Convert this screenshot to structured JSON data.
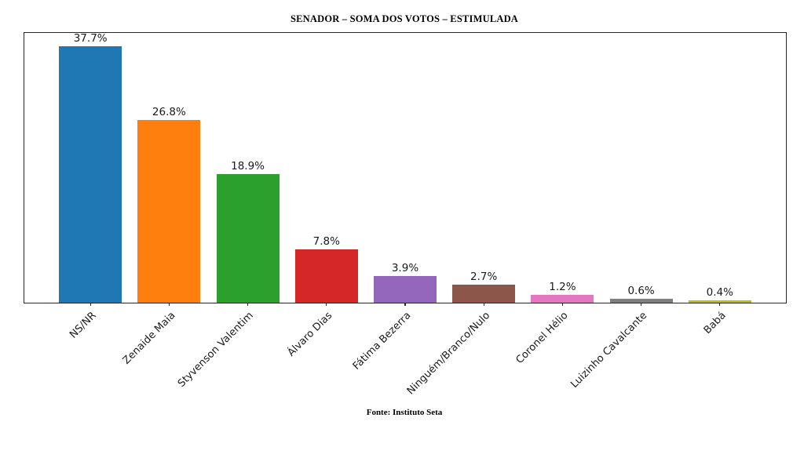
{
  "title": "SENADOR – SOMA DOS VOTOS – ESTIMULADA",
  "source": "Fonte: Instituto Seta",
  "chart_data": {
    "type": "bar",
    "title": "SENADOR – SOMA DOS VOTOS – ESTIMULADA",
    "categories": [
      "NS/NR",
      "Zenaide Maia",
      "Styvenson Valentim",
      "Álvaro Dias",
      "Fátima Bezerra",
      "Ninguém/Branco/Nulo",
      "Coronel Hélio",
      "Luizinho Cavalcante",
      "Babá"
    ],
    "values": [
      37.7,
      26.8,
      18.9,
      7.8,
      3.9,
      2.7,
      1.2,
      0.6,
      0.4
    ],
    "value_labels": [
      "37.7%",
      "26.8%",
      "18.9%",
      "7.8%",
      "3.9%",
      "2.7%",
      "1.2%",
      "0.6%",
      "0.4%"
    ],
    "bar_colors": [
      "#1f77b4",
      "#ff7f0e",
      "#2ca02c",
      "#d62728",
      "#9467bd",
      "#8c564b",
      "#e377c2",
      "#7f7f7f",
      "#bcbd22"
    ],
    "xlabel": "",
    "ylabel": "",
    "ylim": [
      0,
      39.6
    ],
    "grid": false,
    "legend": "none",
    "xtick_rotation": 45,
    "annotation": "Fonte: Instituto Seta"
  }
}
